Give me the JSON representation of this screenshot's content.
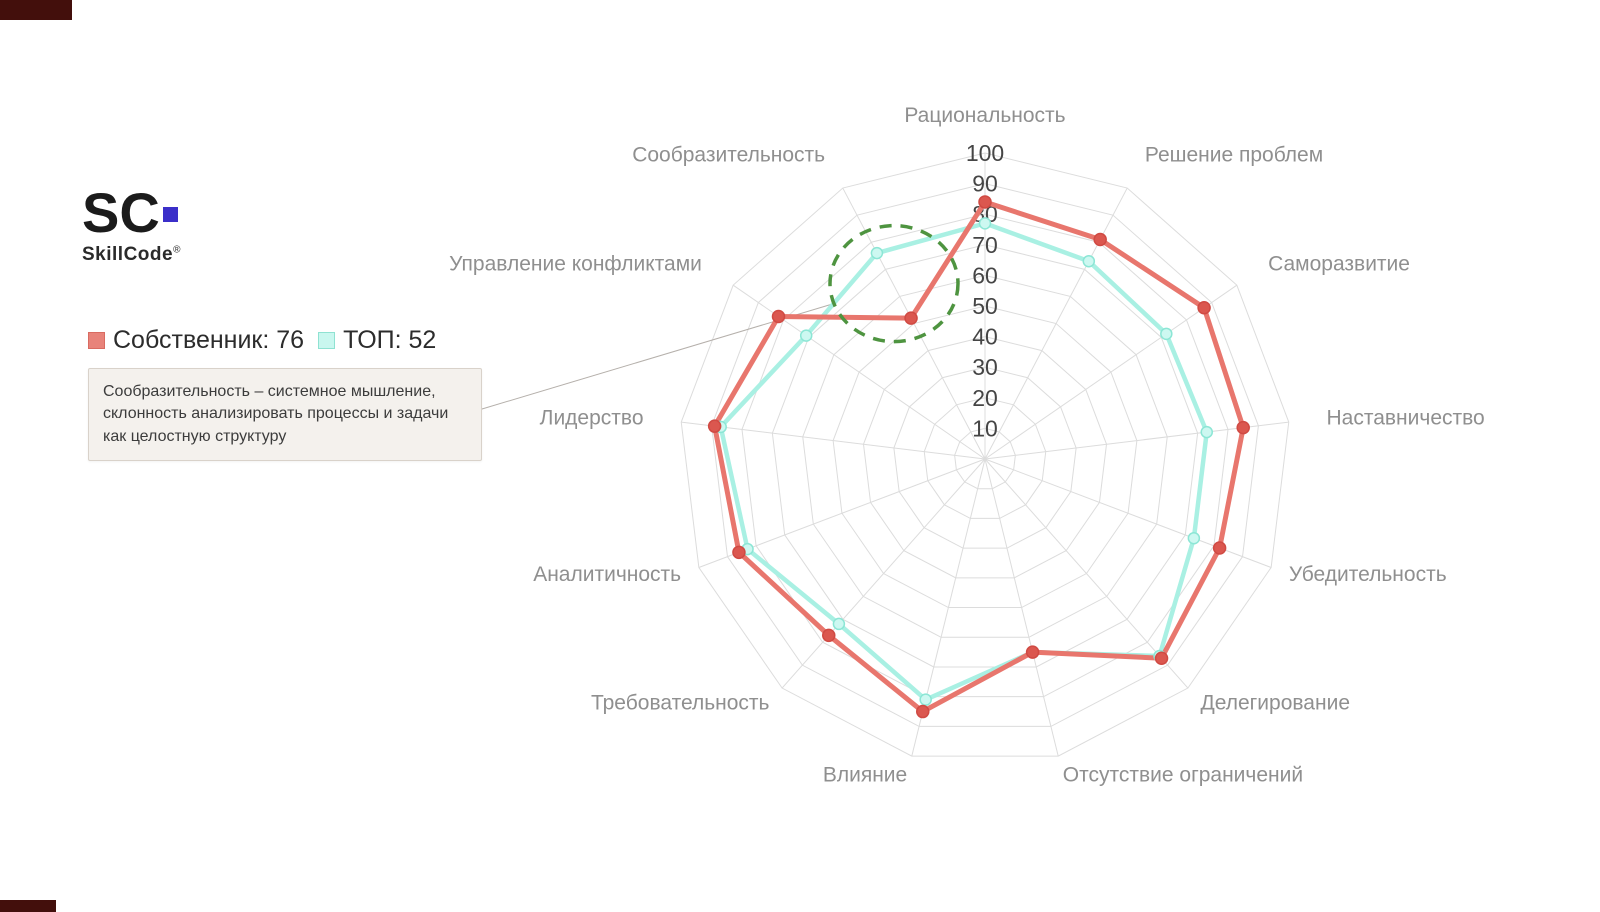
{
  "decor": {
    "corner_top_left_color": "#430f0c",
    "corner_bottom_left_color": "#430f0c"
  },
  "logo": {
    "mark": "SC",
    "name": "SkillCode",
    "registered": "®",
    "accent_color": "#3b2fc9"
  },
  "legend": {
    "items": [
      {
        "label": "Собственник: 76",
        "swatch_color": "#e8837a",
        "swatch_border": "#d96b61"
      },
      {
        "label": "ТОП: 52",
        "swatch_color": "#c9f7ef",
        "swatch_border": "#8fe2d2"
      }
    ]
  },
  "tooltip": {
    "text": "Сообразительность – системное мышление, склонность анализировать процессы и задачи как целостную структуру"
  },
  "chart_data": {
    "type": "radar",
    "categories": [
      "Рациональность",
      "Решение проблем",
      "Саморазвитие",
      "Наставничество",
      "Убедительность",
      "Делегирование",
      "Отсутствие ограничений",
      "Влияние",
      "Требовательность",
      "Аналитичность",
      "Лидерство",
      "Управление конфликтами",
      "Сообразительность"
    ],
    "series": [
      {
        "name": "Собственник",
        "legend_value": 76,
        "color": "#e8766d",
        "dot_color": "#db574f",
        "dot_stroke": "#d04a43",
        "values": [
          84,
          81,
          87,
          85,
          82,
          87,
          65,
          85,
          77,
          86,
          89,
          82,
          52
        ]
      },
      {
        "name": "ТОП",
        "legend_value": 52,
        "color": "#a9f0e3",
        "dot_color": "#cdf8f1",
        "dot_stroke": "#8ce6d5",
        "values": [
          77,
          73,
          72,
          73,
          73,
          86,
          65,
          81,
          72,
          83,
          87,
          71,
          76
        ]
      }
    ],
    "radial_ticks": [
      10,
      20,
      30,
      40,
      50,
      60,
      70,
      80,
      90,
      100
    ],
    "rmin": 0,
    "rmax": 100,
    "grid": true,
    "legend_position": "top-left",
    "highlight": {
      "category": "Сообразительность",
      "circle_color": "#4e9440",
      "circle_style": "dashed"
    }
  }
}
